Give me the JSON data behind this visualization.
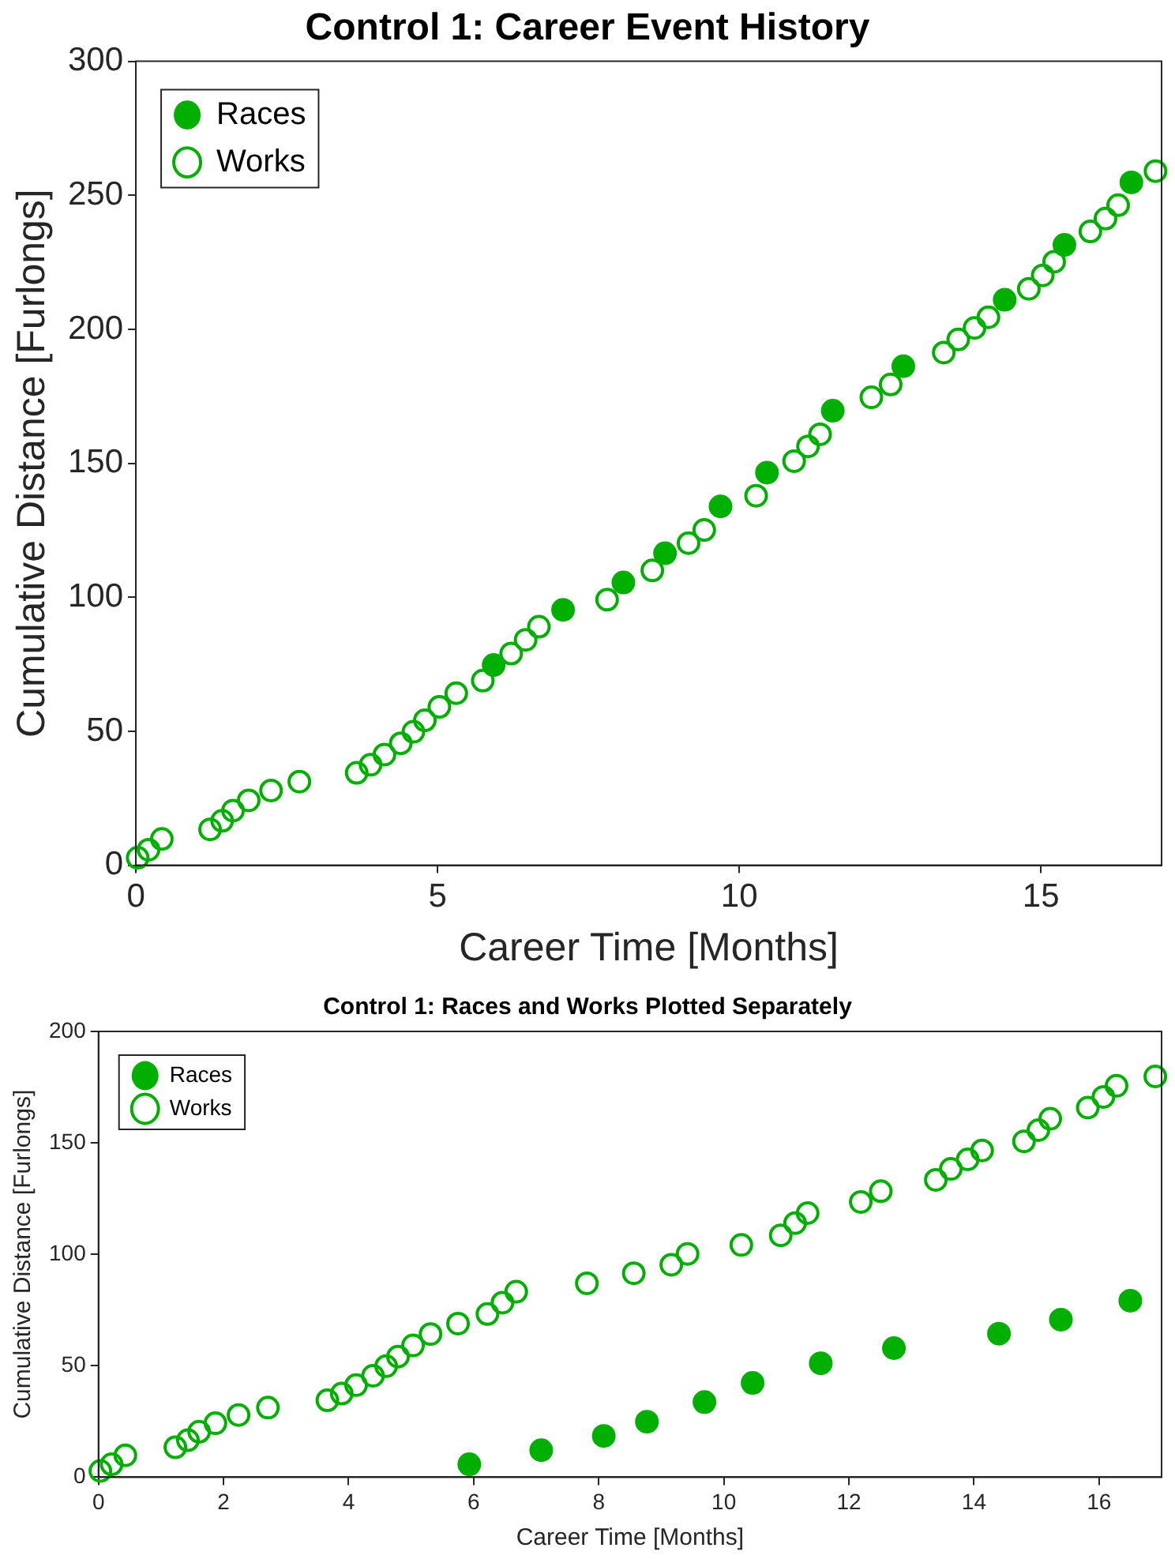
{
  "chart_data": [
    {
      "type": "scatter",
      "title": "Control 1: Career Event History",
      "xlabel": "Career Time [Months]",
      "ylabel": "Cumulative Distance [Furlongs]",
      "xlim": [
        0,
        17
      ],
      "xticks": [
        0,
        5,
        10,
        15
      ],
      "ylim": [
        0,
        300
      ],
      "yticks": [
        0,
        50,
        100,
        150,
        200,
        250,
        300
      ],
      "grid": false,
      "legend": "top left",
      "series": [
        {
          "name": "Races",
          "color": "#00b000",
          "marker": "circle",
          "x": [
            5.93,
            7.08,
            8.08,
            8.77,
            9.69,
            10.46,
            11.55,
            12.72,
            14.4,
            15.39,
            16.5
          ],
          "values": [
            74.7,
            95.3,
            105.5,
            116.4,
            133.9,
            146.5,
            169.6,
            186.2,
            211.0,
            231.5,
            254.8
          ]
        },
        {
          "name": "Works",
          "color": "#00b000",
          "marker": "circle-open",
          "x": [
            0.03,
            0.21,
            0.43,
            1.23,
            1.43,
            1.61,
            1.87,
            2.24,
            2.71,
            3.66,
            3.89,
            4.12,
            4.39,
            4.6,
            4.79,
            5.03,
            5.31,
            5.75,
            6.22,
            6.46,
            6.68,
            7.81,
            8.56,
            9.16,
            9.42,
            10.28,
            10.91,
            11.14,
            11.34,
            12.19,
            12.51,
            13.39,
            13.63,
            13.9,
            14.13,
            14.8,
            15.03,
            15.22,
            15.82,
            16.07,
            16.28,
            16.9
          ],
          "values": [
            2.8,
            5.8,
            9.8,
            13.4,
            16.6,
            20.4,
            24.2,
            27.9,
            31.2,
            34.5,
            37.5,
            41.3,
            45.5,
            49.8,
            54.1,
            59.1,
            64.2,
            68.9,
            79.0,
            84.1,
            89.0,
            99.1,
            110.0,
            120.2,
            125.1,
            137.9,
            150.8,
            156.3,
            160.8,
            174.6,
            179.4,
            191.3,
            196.2,
            200.5,
            204.5,
            215.1,
            220.1,
            225.2,
            236.5,
            241.3,
            246.3,
            259.0
          ]
        }
      ]
    },
    {
      "type": "scatter",
      "title": "Control 1: Races and Works Plotted Separately",
      "xlabel": "Career Time [Months]",
      "ylabel": "Cumulative Distance [Furlongs]",
      "xlim": [
        0,
        17
      ],
      "xticks": [
        0,
        2,
        4,
        6,
        8,
        10,
        12,
        14,
        16
      ],
      "ylim": [
        0,
        200
      ],
      "yticks": [
        0,
        50,
        100,
        150,
        200
      ],
      "grid": false,
      "legend": "top left",
      "series": [
        {
          "name": "Races",
          "color": "#00b000",
          "marker": "circle",
          "x": [
            5.93,
            7.08,
            8.08,
            8.77,
            9.69,
            10.46,
            11.55,
            12.72,
            14.4,
            15.39,
            16.5
          ],
          "values": [
            5.8,
            12.1,
            18.5,
            24.9,
            33.7,
            42.3,
            51.1,
            57.9,
            64.4,
            70.7,
            79.2
          ]
        },
        {
          "name": "Works",
          "color": "#00b000",
          "marker": "circle-open",
          "x": [
            0.03,
            0.21,
            0.43,
            1.23,
            1.43,
            1.61,
            1.87,
            2.24,
            2.71,
            3.66,
            3.89,
            4.12,
            4.39,
            4.6,
            4.79,
            5.03,
            5.31,
            5.75,
            6.22,
            6.46,
            6.68,
            7.81,
            8.56,
            9.16,
            9.42,
            10.28,
            10.91,
            11.14,
            11.34,
            12.19,
            12.51,
            13.39,
            13.63,
            13.9,
            14.13,
            14.8,
            15.03,
            15.22,
            15.82,
            16.07,
            16.28,
            16.9
          ],
          "values": [
            2.8,
            5.8,
            9.8,
            13.4,
            16.6,
            20.4,
            24.2,
            27.9,
            31.2,
            34.5,
            37.5,
            41.3,
            45.5,
            49.8,
            54.1,
            59.1,
            64.2,
            68.9,
            73.2,
            78.3,
            83.2,
            87.0,
            91.5,
            95.3,
            100.2,
            104.2,
            108.5,
            114.0,
            118.5,
            123.5,
            128.3,
            133.4,
            138.3,
            142.6,
            146.6,
            150.7,
            155.7,
            160.8,
            165.8,
            170.6,
            175.6,
            179.8
          ]
        }
      ]
    }
  ]
}
